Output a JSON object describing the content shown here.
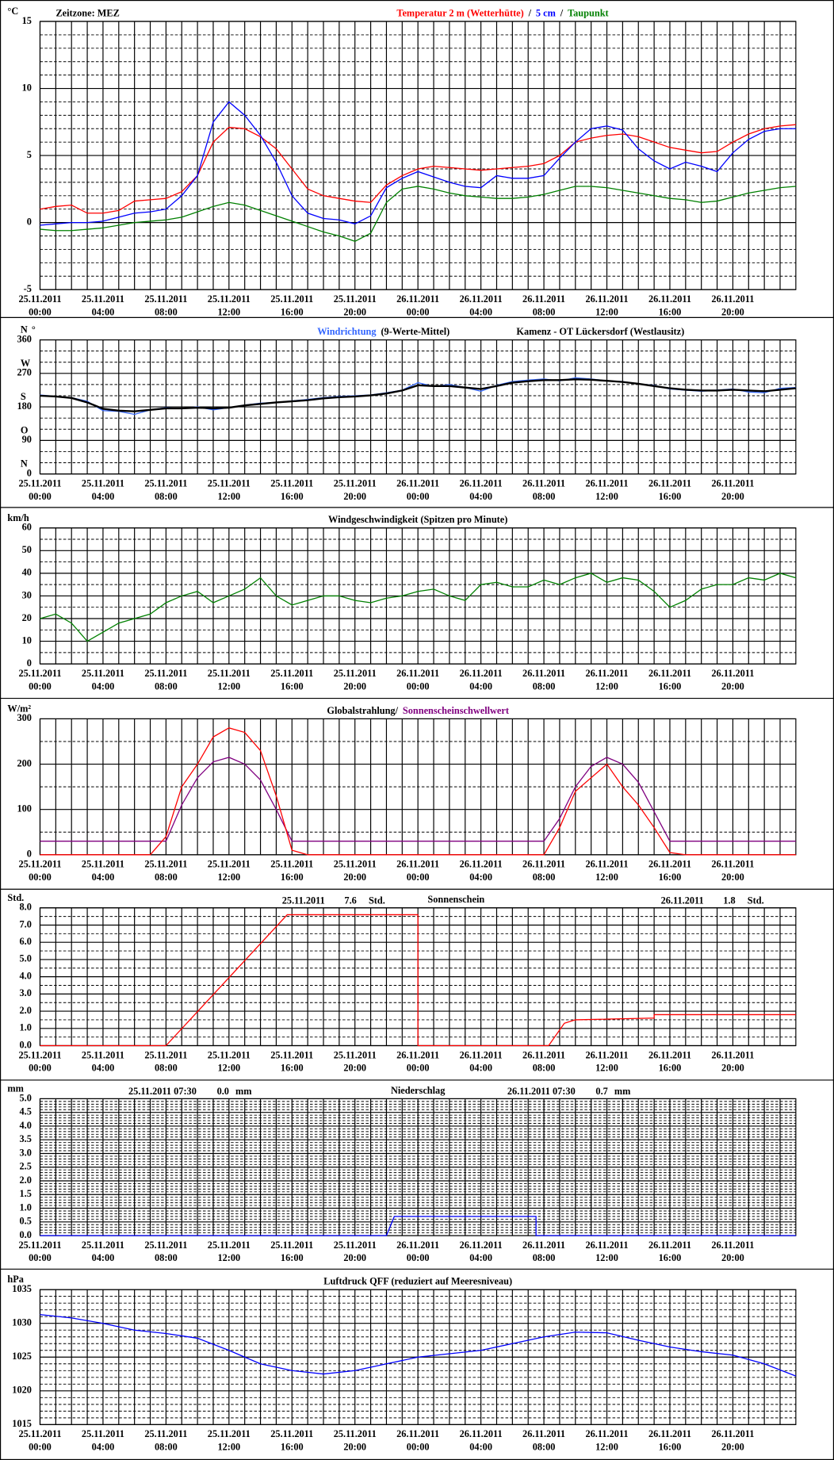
{
  "x_axis": {
    "xlim": [
      0,
      48
    ],
    "minor_xgrid": 4,
    "xticks": [
      {
        "value": 0,
        "date": "25.11.2011",
        "time": "00:00"
      },
      {
        "value": 4,
        "date": "25.11.2011",
        "time": "04:00"
      },
      {
        "value": 8,
        "date": "25.11.2011",
        "time": "08:00"
      },
      {
        "value": 12,
        "date": "25.11.2011",
        "time": "12:00"
      },
      {
        "value": 16,
        "date": "25.11.2011",
        "time": "16:00"
      },
      {
        "value": 20,
        "date": "25.11.2011",
        "time": "20:00"
      },
      {
        "value": 24,
        "date": "26.11.2011",
        "time": "00:00"
      },
      {
        "value": 28,
        "date": "26.11.2011",
        "time": "04:00"
      },
      {
        "value": 32,
        "date": "26.11.2011",
        "time": "08:00"
      },
      {
        "value": 36,
        "date": "26.11.2011",
        "time": "12:00"
      },
      {
        "value": 40,
        "date": "26.11.2011",
        "time": "16:00"
      },
      {
        "value": 44,
        "date": "26.11.2011",
        "time": "20:00"
      }
    ]
  },
  "chart_data": [
    {
      "type": "line",
      "units": "°C",
      "note": "Zeitzone: MEZ",
      "title_parts": [
        {
          "text": "Temperatur 2 m (Wetterhütte)",
          "color": "#ff0000"
        },
        {
          "text": "/",
          "color": "#000000"
        },
        {
          "text": "5 cm",
          "color": "#0000ff"
        },
        {
          "text": "/",
          "color": "#000000"
        },
        {
          "text": "Taupunkt",
          "color": "#008000"
        }
      ],
      "ylim": [
        -5,
        15
      ],
      "yticks": [
        -5,
        0,
        5,
        10,
        15
      ],
      "minor_grid": 5,
      "x": [
        0,
        1,
        2,
        3,
        4,
        5,
        6,
        7,
        8,
        9,
        10,
        11,
        12,
        13,
        14,
        15,
        16,
        17,
        18,
        19,
        20,
        21,
        22,
        23,
        24,
        25,
        26,
        27,
        28,
        29,
        30,
        31,
        32,
        33,
        34,
        35,
        36,
        37,
        38,
        39,
        40,
        41,
        42,
        43,
        44,
        45,
        46,
        47,
        48
      ],
      "series": [
        {
          "name": "Temperatur 2 m (Wetterhütte)",
          "color": "#ff0000",
          "values": [
            1.0,
            1.2,
            1.3,
            0.7,
            0.7,
            0.9,
            1.6,
            1.7,
            1.8,
            2.3,
            3.5,
            6.0,
            7.1,
            7.0,
            6.4,
            5.5,
            4.0,
            2.5,
            2.0,
            1.8,
            1.6,
            1.5,
            2.8,
            3.5,
            4.0,
            4.2,
            4.1,
            4.0,
            3.9,
            4.0,
            4.1,
            4.2,
            4.4,
            5.0,
            6.0,
            6.3,
            6.5,
            6.6,
            6.4,
            6.0,
            5.6,
            5.4,
            5.2,
            5.3,
            6.0,
            6.6,
            7.0,
            7.2,
            7.3
          ]
        },
        {
          "name": "5 cm",
          "color": "#0000ff",
          "values": [
            -0.2,
            -0.1,
            0,
            0,
            0.1,
            0.4,
            0.7,
            0.8,
            1.0,
            2.0,
            3.5,
            7.5,
            9.0,
            8.0,
            6.5,
            4.5,
            2.0,
            0.7,
            0.3,
            0.2,
            -0.1,
            0.5,
            2.6,
            3.3,
            3.8,
            3.4,
            3.0,
            2.7,
            2.6,
            3.5,
            3.3,
            3.3,
            3.5,
            4.8,
            6.0,
            7.0,
            7.2,
            6.9,
            5.5,
            4.6,
            4.0,
            4.5,
            4.2,
            3.8,
            5.2,
            6.2,
            6.8,
            7.0,
            7.0
          ]
        },
        {
          "name": "Taupunkt",
          "color": "#008000",
          "values": [
            -0.5,
            -0.6,
            -0.6,
            -0.5,
            -0.4,
            -0.2,
            0,
            0.1,
            0.2,
            0.4,
            0.8,
            1.2,
            1.5,
            1.3,
            0.9,
            0.5,
            0.1,
            -0.3,
            -0.7,
            -1.0,
            -1.4,
            -0.8,
            1.5,
            2.5,
            2.7,
            2.5,
            2.2,
            2.0,
            1.9,
            1.8,
            1.8,
            1.9,
            2.1,
            2.4,
            2.7,
            2.7,
            2.6,
            2.4,
            2.2,
            2.0,
            1.8,
            1.7,
            1.5,
            1.6,
            1.9,
            2.2,
            2.4,
            2.6,
            2.7
          ]
        }
      ]
    },
    {
      "type": "line",
      "units": "°",
      "title_parts": [
        {
          "text": "Windrichtung",
          "color": "#3366ff"
        },
        {
          "text": "(9-Werte-Mittel)",
          "color": "#000000"
        }
      ],
      "subtitle": "Kamenz - OT Lückersdorf (Westlausitz)",
      "compass_labels": [
        {
          "value": 0,
          "label": "N"
        },
        {
          "value": 90,
          "label": "O"
        },
        {
          "value": 180,
          "label": "S"
        },
        {
          "value": 270,
          "label": "W"
        },
        {
          "value": 360,
          "label": "N"
        }
      ],
      "ylim": [
        0,
        360
      ],
      "yticks": [
        0,
        90,
        180,
        270,
        360
      ],
      "minor_grid": 3,
      "x": [
        0,
        1,
        2,
        3,
        4,
        5,
        6,
        7,
        8,
        9,
        10,
        11,
        12,
        13,
        14,
        15,
        16,
        17,
        18,
        19,
        20,
        21,
        22,
        23,
        24,
        25,
        26,
        27,
        28,
        29,
        30,
        31,
        32,
        33,
        34,
        35,
        36,
        37,
        38,
        39,
        40,
        41,
        42,
        43,
        44,
        45,
        46,
        47,
        48
      ],
      "series": [
        {
          "name": "Windrichtung",
          "color": "#3366ff",
          "values": [
            212,
            208,
            205,
            195,
            170,
            168,
            160,
            172,
            178,
            175,
            180,
            172,
            178,
            185,
            190,
            192,
            196,
            200,
            205,
            208,
            210,
            212,
            218,
            225,
            245,
            235,
            240,
            232,
            222,
            238,
            248,
            252,
            255,
            250,
            258,
            255,
            250,
            248,
            242,
            238,
            228,
            225,
            222,
            225,
            228,
            220,
            218,
            230,
            232
          ]
        },
        {
          "name": "9-Werte-Mittel",
          "color": "#000000",
          "values": [
            210,
            208,
            204,
            192,
            175,
            170,
            168,
            172,
            176,
            176,
            178,
            176,
            178,
            184,
            188,
            192,
            195,
            198,
            203,
            206,
            208,
            211,
            216,
            224,
            238,
            236,
            236,
            232,
            228,
            236,
            245,
            249,
            252,
            252,
            254,
            253,
            250,
            247,
            242,
            236,
            230,
            226,
            224,
            224,
            226,
            224,
            222,
            226,
            230
          ]
        }
      ]
    },
    {
      "type": "line",
      "units": "km/h",
      "title": "Windgeschwindigkeit (Spitzen pro Minute)",
      "ylim": [
        0,
        60
      ],
      "yticks": [
        0,
        10,
        20,
        30,
        40,
        50,
        60
      ],
      "minor_grid": 2,
      "x": [
        0,
        1,
        2,
        3,
        4,
        5,
        6,
        7,
        8,
        9,
        10,
        11,
        12,
        13,
        14,
        15,
        16,
        17,
        18,
        19,
        20,
        21,
        22,
        23,
        24,
        25,
        26,
        27,
        28,
        29,
        30,
        31,
        32,
        33,
        34,
        35,
        36,
        37,
        38,
        39,
        40,
        41,
        42,
        43,
        44,
        45,
        46,
        47,
        48
      ],
      "series": [
        {
          "name": "Windgeschwindigkeit",
          "color": "#008000",
          "values": [
            20,
            22,
            18,
            10,
            14,
            18,
            20,
            22,
            27,
            30,
            32,
            27,
            30,
            33,
            38,
            30,
            26,
            28,
            30,
            30,
            28,
            27,
            29,
            30,
            32,
            33,
            30,
            28,
            35,
            36,
            34,
            34,
            37,
            35,
            38,
            40,
            36,
            38,
            37,
            32,
            25,
            28,
            33,
            35,
            35,
            38,
            37,
            40,
            38
          ]
        }
      ]
    },
    {
      "type": "line",
      "units": "W/m²",
      "title_parts": [
        {
          "text": "Globalstrahlung/",
          "color": "#000000"
        },
        {
          "text": "Sonnenscheinschwellwert",
          "color": "#800080"
        }
      ],
      "ylim": [
        0,
        300
      ],
      "yticks": [
        0,
        100,
        200,
        300
      ],
      "minor_grid": 2,
      "x": [
        0,
        1,
        2,
        3,
        4,
        5,
        6,
        7,
        8,
        9,
        10,
        11,
        12,
        13,
        14,
        15,
        16,
        17,
        18,
        19,
        20,
        21,
        22,
        23,
        24,
        25,
        26,
        27,
        28,
        29,
        30,
        31,
        32,
        33,
        34,
        35,
        36,
        37,
        38,
        39,
        40,
        41,
        42,
        43,
        44,
        45,
        46,
        47,
        48
      ],
      "series": [
        {
          "name": "Sonnenscheinschwellwert",
          "color": "#800080",
          "values": [
            30,
            30,
            30,
            30,
            30,
            30,
            30,
            30,
            30,
            110,
            170,
            205,
            215,
            200,
            165,
            100,
            30,
            30,
            30,
            30,
            30,
            30,
            30,
            30,
            30,
            30,
            30,
            30,
            30,
            30,
            30,
            30,
            30,
            80,
            150,
            195,
            215,
            200,
            160,
            95,
            30,
            30,
            30,
            30,
            30,
            30,
            30,
            30,
            30
          ]
        },
        {
          "name": "Globalstrahlung",
          "color": "#ff0000",
          "values": [
            0,
            0,
            0,
            0,
            0,
            0,
            0,
            0,
            40,
            150,
            200,
            260,
            280,
            270,
            230,
            130,
            10,
            0,
            0,
            0,
            0,
            0,
            0,
            0,
            0,
            0,
            0,
            0,
            0,
            0,
            0,
            0,
            0,
            60,
            140,
            170,
            200,
            150,
            110,
            60,
            5,
            0,
            0,
            0,
            0,
            0,
            0,
            0,
            0
          ]
        }
      ]
    },
    {
      "type": "line",
      "units": "Std.",
      "title": "Sonnenschein",
      "summary_left": [
        "25.11.2011",
        "7.6",
        "Std."
      ],
      "summary_right": [
        "26.11.2011",
        "1.8",
        "Std."
      ],
      "ylim": [
        0,
        8
      ],
      "yticks": [
        {
          "value": 0,
          "label": "0.0"
        },
        {
          "value": 1,
          "label": "1.0"
        },
        {
          "value": 2,
          "label": "2.0"
        },
        {
          "value": 3,
          "label": "3.0"
        },
        {
          "value": 4,
          "label": "4.0"
        },
        {
          "value": 5,
          "label": "5.0"
        },
        {
          "value": 6,
          "label": "6.0"
        },
        {
          "value": 7,
          "label": "7.0"
        },
        {
          "value": 8,
          "label": "8.0"
        }
      ],
      "minor_grid": 2,
      "x": [
        0,
        8,
        15.7,
        24,
        24,
        32.3,
        33.3,
        34,
        39,
        39,
        48
      ],
      "series": [
        {
          "name": "Sonnenschein",
          "color": "#ff0000",
          "values": [
            0,
            0,
            7.6,
            7.6,
            0,
            0,
            1.3,
            1.5,
            1.6,
            1.8,
            1.8
          ]
        }
      ]
    },
    {
      "type": "line",
      "units": "mm",
      "title": "Niederschlag",
      "summary_left": [
        "25.11.2011 07:30",
        "0.0",
        "mm"
      ],
      "summary_right": [
        "26.11.2011 07:30",
        "0.7",
        "mm"
      ],
      "ylim": [
        0,
        5
      ],
      "yticks": [
        {
          "value": 0,
          "label": "0.0"
        },
        0.5,
        {
          "value": 1,
          "label": "1.0"
        },
        1.5,
        {
          "value": 2,
          "label": "2.0"
        },
        2.5,
        {
          "value": 3,
          "label": "3.0"
        },
        3.5,
        {
          "value": 4,
          "label": "4.0"
        },
        4.5,
        {
          "value": 5,
          "label": "5.0"
        }
      ],
      "minor_grid": 5,
      "x": [
        0,
        22,
        22.5,
        31.5,
        31.5,
        48
      ],
      "series": [
        {
          "name": "Niederschlag",
          "color": "#0000ff",
          "values": [
            0,
            0,
            0.7,
            0.7,
            0,
            0
          ]
        }
      ]
    },
    {
      "type": "line",
      "units": "hPa",
      "title": "Luftdruck QFF (reduziert auf Meeresniveau)",
      "ylim": [
        1015,
        1035
      ],
      "yticks": [
        1015,
        1020,
        1025,
        1030,
        1035
      ],
      "minor_grid": 5,
      "x": [
        0,
        2,
        4,
        6,
        8,
        10,
        12,
        14,
        16,
        18,
        20,
        22,
        24,
        26,
        28,
        30,
        32,
        34,
        36,
        38,
        40,
        42,
        44,
        46,
        48
      ],
      "series": [
        {
          "name": "Luftdruck QFF",
          "color": "#0000ff",
          "values": [
            1031.3,
            1030.8,
            1030,
            1029,
            1028.5,
            1027.8,
            1026,
            1024,
            1023,
            1022.5,
            1023,
            1024,
            1025,
            1025.5,
            1026,
            1027,
            1028,
            1028.7,
            1028.6,
            1027.5,
            1026.5,
            1025.8,
            1025.3,
            1024,
            1022.2
          ]
        }
      ]
    }
  ]
}
